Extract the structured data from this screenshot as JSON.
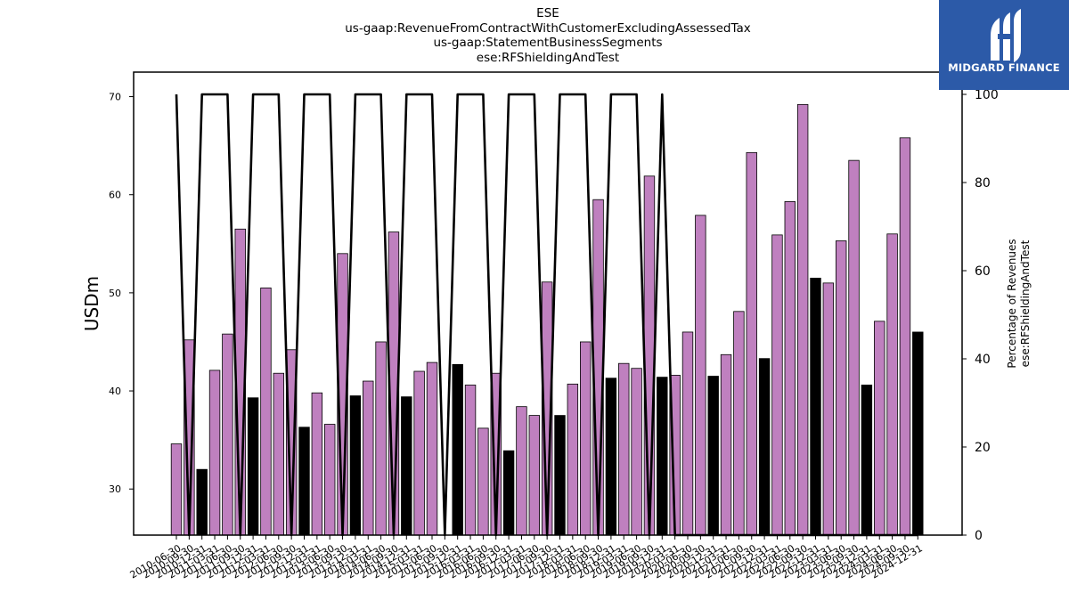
{
  "chart_data": {
    "type": "bar",
    "title_lines": [
      "ESE",
      "us-gaap:RevenueFromContractWithCustomerExcludingAssessedTax",
      "us-gaap:StatementBusinessSegments",
      "ese:RFShieldingAndTest"
    ],
    "ylabel": "USDm",
    "y2label_lines": [
      "Percentage of Revenues",
      "ese:RFShieldingAndTest"
    ],
    "ylim": [
      25.3,
      72.5
    ],
    "y2lim": [
      0,
      100
    ],
    "yticks": [
      30,
      40,
      50,
      60,
      70
    ],
    "y2ticks": [
      0,
      20,
      40,
      60,
      80,
      100
    ],
    "colors": {
      "quarterly": "#bf80bf",
      "annual": "#000000",
      "line": "#000000"
    },
    "legend": "none",
    "grid": false,
    "categories": [
      "2010-06-30",
      "2010-09-30",
      "2010-12-31",
      "2011-03-31",
      "2011-06-30",
      "2011-09-30",
      "2011-12-31",
      "2012-03-31",
      "2012-06-30",
      "2012-09-30",
      "2012-12-31",
      "2013-03-31",
      "2013-06-30",
      "2013-09-30",
      "2013-12-31",
      "2014-03-31",
      "2014-06-30",
      "2014-09-30",
      "2014-12-31",
      "2015-03-31",
      "2015-06-30",
      "2015-09-30",
      "2015-12-31",
      "2016-03-31",
      "2016-06-30",
      "2016-09-30",
      "2016-12-31",
      "2017-03-31",
      "2017-06-30",
      "2017-09-30",
      "2017-12-31",
      "2018-03-31",
      "2018-06-30",
      "2018-09-30",
      "2018-12-31",
      "2019-03-31",
      "2019-06-30",
      "2019-09-30",
      "2019-12-31",
      "2020-03-31",
      "2020-06-30",
      "2020-09-30",
      "2020-12-31",
      "2021-03-31",
      "2021-06-30",
      "2021-09-30",
      "2021-12-31",
      "2022-03-31",
      "2022-06-30",
      "2022-09-30",
      "2022-12-31",
      "2023-03-31",
      "2023-06-30",
      "2023-09-30",
      "2023-12-31",
      "2024-03-31",
      "2024-06-30",
      "2024-09-30",
      "2024-12-31"
    ],
    "series": [
      {
        "kind": "bar",
        "axis": "left",
        "values": [
          34.6,
          45.2,
          32.0,
          42.1,
          45.8,
          56.5,
          39.3,
          50.5,
          41.8,
          44.2,
          36.3,
          39.8,
          36.6,
          54.0,
          39.5,
          41.0,
          45.0,
          56.2,
          39.4,
          42.0,
          42.9,
          null,
          42.7,
          40.6,
          36.2,
          41.8,
          33.9,
          38.4,
          37.5,
          51.1,
          37.5,
          40.7,
          45.0,
          59.5,
          41.3,
          42.8,
          42.3,
          61.9,
          41.4,
          41.6,
          46.0,
          57.9,
          41.5,
          43.7,
          48.1,
          64.3,
          43.3,
          55.9,
          59.3,
          69.2,
          51.5,
          51.0,
          55.3,
          63.5,
          40.6,
          47.1,
          56.0,
          65.8,
          46.0
        ],
        "annual_flags": [
          0,
          0,
          1,
          0,
          0,
          0,
          1,
          0,
          0,
          0,
          1,
          0,
          0,
          0,
          1,
          0,
          0,
          0,
          1,
          0,
          0,
          0,
          1,
          0,
          0,
          0,
          1,
          0,
          0,
          0,
          1,
          0,
          0,
          0,
          1,
          0,
          0,
          0,
          1,
          0,
          0,
          0,
          1,
          0,
          0,
          0,
          1,
          0,
          0,
          0,
          1,
          0,
          0,
          0,
          1,
          0,
          0,
          0,
          1
        ]
      },
      {
        "kind": "line",
        "axis": "right",
        "values": [
          100,
          0,
          100,
          100,
          100,
          0,
          100,
          100,
          100,
          0,
          100,
          100,
          100,
          0,
          100,
          100,
          100,
          0,
          100,
          100,
          100,
          0,
          100,
          100,
          100,
          0,
          100,
          100,
          100,
          0,
          100,
          100,
          100,
          0,
          100,
          100,
          100,
          0,
          100,
          0,
          0,
          0,
          0,
          0,
          0,
          0,
          0,
          0,
          0,
          0,
          0,
          0,
          0,
          0,
          0,
          0,
          0,
          0,
          0
        ]
      }
    ]
  },
  "branding": {
    "logo_text": "MIDGARD FINANCE"
  }
}
